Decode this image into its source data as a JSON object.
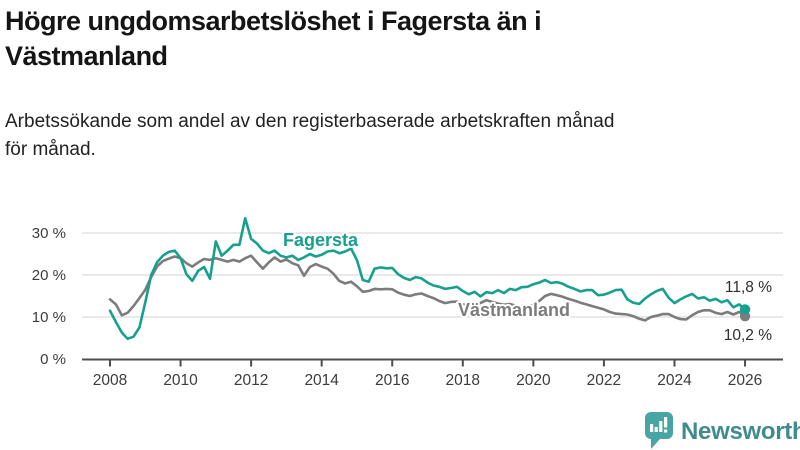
{
  "header": {
    "title_lines": [
      "Högre ungdomsarbetslöshet i Fagersta än i",
      "Västmanland"
    ],
    "subtitle_lines": [
      "Arbetssökande som andel av den registerbaserade arbetskraften månad",
      "för månad."
    ]
  },
  "chart_data": {
    "type": "line",
    "title": "Högre ungdomsarbetslöshet i Fagersta än i Västmanland",
    "subtitle": "Arbetssökande som andel av den registerbaserade arbetskraften månad för månad.",
    "x_start": 2008,
    "x_step_years": 0.1666667,
    "grid": "horizontal-only",
    "legend": "inline-series-labels",
    "x_axis": {
      "ticks": [
        {
          "value": 2008,
          "label": "2008"
        },
        {
          "value": 2010,
          "label": "2010"
        },
        {
          "value": 2012,
          "label": "2012"
        },
        {
          "value": 2014,
          "label": "2014"
        },
        {
          "value": 2016,
          "label": "2016"
        },
        {
          "value": 2018,
          "label": "2018"
        },
        {
          "value": 2020,
          "label": "2020"
        },
        {
          "value": 2022,
          "label": "2022"
        },
        {
          "value": 2024,
          "label": "2024"
        },
        {
          "value": 2026,
          "label": "2026"
        }
      ]
    },
    "y_axis": {
      "unit_suffix": " %",
      "max": 35,
      "ticks": [
        {
          "value": 0,
          "label": "0 %"
        },
        {
          "value": 10,
          "label": "10 %"
        },
        {
          "value": 20,
          "label": "20 %"
        },
        {
          "value": 30,
          "label": "30 %"
        }
      ]
    },
    "series": [
      {
        "name": "Fagersta",
        "color": "#17A08D",
        "end_value": 11.8,
        "end_label": "11,8 %",
        "values": [
          11.5,
          8.8,
          6.3,
          4.8,
          5.3,
          7.5,
          13.5,
          20.0,
          23.0,
          24.6,
          25.5,
          25.8,
          24.0,
          20.2,
          18.6,
          21.0,
          21.9,
          19.1,
          28.0,
          24.6,
          25.8,
          27.2,
          27.2,
          33.5,
          28.6,
          27.5,
          25.8,
          25.2,
          25.8,
          24.6,
          24.2,
          24.6,
          23.6,
          24.2,
          25.0,
          24.4,
          24.8,
          25.6,
          25.8,
          25.2,
          25.6,
          26.3,
          23.5,
          18.8,
          18.4,
          21.5,
          21.8,
          21.6,
          21.7,
          20.2,
          19.3,
          18.8,
          19.5,
          19.2,
          18.2,
          17.5,
          17.2,
          16.7,
          16.9,
          17.2,
          16.2,
          15.4,
          16.0,
          14.9,
          15.9,
          15.7,
          16.4,
          15.7,
          16.7,
          16.4,
          17.1,
          17.2,
          17.8,
          18.2,
          18.8,
          18.1,
          18.3,
          17.9,
          17.2,
          16.7,
          16.1,
          16.4,
          16.4,
          15.2,
          15.3,
          15.8,
          16.4,
          16.5,
          14.2,
          13.4,
          13.1,
          14.4,
          15.4,
          16.2,
          16.7,
          14.6,
          13.3,
          14.2,
          14.9,
          15.5,
          14.4,
          14.7,
          13.9,
          14.3,
          13.5,
          14.0,
          12.3,
          13.0,
          11.8
        ]
      },
      {
        "name": "Västmanland",
        "color": "#7C7C7C",
        "end_value": 10.2,
        "end_label": "10,2 %",
        "values": [
          14.2,
          13.0,
          10.4,
          11.0,
          12.6,
          14.5,
          16.5,
          19.5,
          22.0,
          23.3,
          23.9,
          24.4,
          24.0,
          22.8,
          22.0,
          23.0,
          23.8,
          23.6,
          24.0,
          23.6,
          23.2,
          23.6,
          23.2,
          24.0,
          24.6,
          23.0,
          21.5,
          23.0,
          24.2,
          23.2,
          23.7,
          22.8,
          22.3,
          19.8,
          21.9,
          22.6,
          22.0,
          21.5,
          20.3,
          18.6,
          18.0,
          18.4,
          17.3,
          16.0,
          16.2,
          16.7,
          16.6,
          16.7,
          16.6,
          15.8,
          15.3,
          15.0,
          15.4,
          15.6,
          15.0,
          14.5,
          13.8,
          13.3,
          13.6,
          13.7,
          13.0,
          12.7,
          13.2,
          13.3,
          14.0,
          13.6,
          13.2,
          12.9,
          13.1,
          12.7,
          12.5,
          12.6,
          12.8,
          13.8,
          15.0,
          15.5,
          15.2,
          14.8,
          14.3,
          13.9,
          13.4,
          13.0,
          12.6,
          12.2,
          11.8,
          11.2,
          10.8,
          10.7,
          10.6,
          10.2,
          9.6,
          9.2,
          10.0,
          10.3,
          10.7,
          10.7,
          10.0,
          9.5,
          9.4,
          10.4,
          11.2,
          11.6,
          11.6,
          11.0,
          10.7,
          11.2,
          10.6,
          11.2,
          10.2
        ]
      }
    ],
    "style": {
      "grid_color": "#DCDCDC",
      "axis_color": "#4D4D4D",
      "tick_label_color": "#3C3C3C",
      "value_label_color": "#2E2E2E"
    }
  },
  "footer": {
    "brand": "Newsworthy",
    "brand_text_color": "#3F8B8E",
    "logo_bubble_color": "#47A5A3"
  }
}
